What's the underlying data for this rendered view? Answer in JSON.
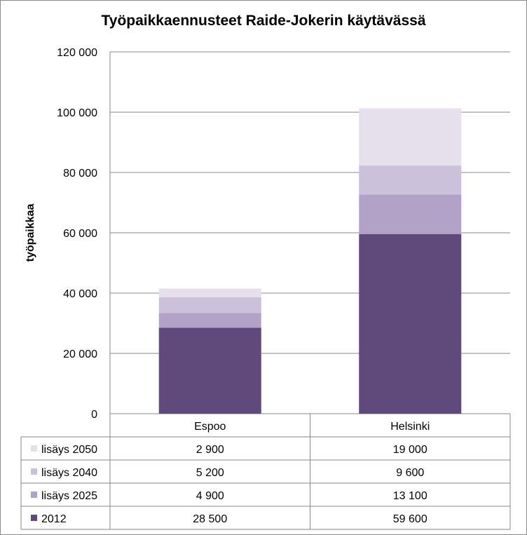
{
  "chart_data": {
    "type": "bar",
    "stacked": true,
    "title": "Työpaikkaennusteet Raide-Jokerin käytävässä",
    "xlabel": "",
    "ylabel": "työpaikkaa",
    "ylim": [
      0,
      120000
    ],
    "yticks": [
      "0",
      "20 000",
      "40 000",
      "60 000",
      "80 000",
      "100 000",
      "120 000"
    ],
    "categories": [
      "Espoo",
      "Helsinki"
    ],
    "series": [
      {
        "name": "2012",
        "values": [
          28500,
          59600
        ],
        "labels": [
          "28 500",
          "59 600"
        ],
        "color": "#604a7b"
      },
      {
        "name": "lisäys 2025",
        "values": [
          4900,
          13100
        ],
        "labels": [
          "4 900",
          "13 100"
        ],
        "color": "#b3a2c7"
      },
      {
        "name": "lisäys 2040",
        "values": [
          5200,
          9600
        ],
        "labels": [
          "5 200",
          "9 600"
        ],
        "color": "#ccc1da"
      },
      {
        "name": "lisäys 2050",
        "values": [
          2900,
          19000
        ],
        "labels": [
          "2 900",
          "19 000"
        ],
        "color": "#e5e0ec"
      }
    ],
    "grid": true,
    "legend": "data table"
  }
}
